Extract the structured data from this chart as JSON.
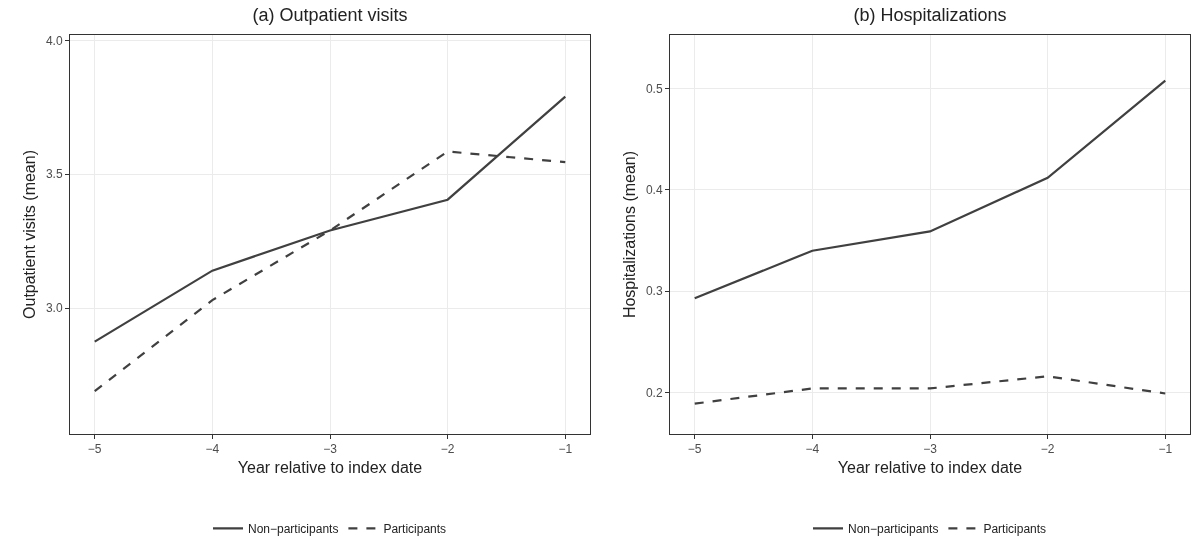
{
  "chart_data": [
    {
      "type": "line",
      "title": "(a) Outpatient visits",
      "xlabel": "Year relative to index date",
      "ylabel": "Outpatient visits (mean)",
      "x": [
        -5,
        -4,
        -3,
        -2,
        -1
      ],
      "xlim": [
        -5.21,
        -0.79
      ],
      "xticks": [
        {
          "value": -5,
          "label": "−5"
        },
        {
          "value": -4,
          "label": "−4"
        },
        {
          "value": -3,
          "label": "−3"
        },
        {
          "value": -2,
          "label": "−2"
        },
        {
          "value": -1,
          "label": "−1"
        }
      ],
      "ylim": [
        2.53,
        4.02
      ],
      "yticks": [
        {
          "value": 3,
          "label": "3.0"
        },
        {
          "value": 3.5,
          "label": "3.5"
        },
        {
          "value": 4,
          "label": "4.0"
        }
      ],
      "grid": true,
      "legend": "bottom",
      "marker": "none",
      "series": [
        {
          "name": "Non−participants",
          "color": "#404040",
          "line_style": "solid",
          "values": [
            2.875,
            3.14,
            3.29,
            3.405,
            3.79
          ]
        },
        {
          "name": "Participants",
          "color": "#404040",
          "line_style": "dashed",
          "values": [
            2.69,
            3.03,
            3.29,
            3.585,
            3.545
          ]
        }
      ]
    },
    {
      "type": "line",
      "title": "(b) Hospitalizations",
      "xlabel": "Year relative to index date",
      "ylabel": "Hospitalizations (mean)",
      "x": [
        -5,
        -4,
        -3,
        -2,
        -1
      ],
      "xlim": [
        -5.21,
        -0.79
      ],
      "xticks": [
        {
          "value": -5,
          "label": "−5"
        },
        {
          "value": -4,
          "label": "−4"
        },
        {
          "value": -3,
          "label": "−3"
        },
        {
          "value": -2,
          "label": "−2"
        },
        {
          "value": -1,
          "label": "−1"
        }
      ],
      "ylim": [
        0.159,
        0.553
      ],
      "yticks": [
        0.2,
        0.3,
        0.4,
        0.5
      ],
      "grid": true,
      "legend": "bottom",
      "marker": "none",
      "series": [
        {
          "name": "Non−participants",
          "color": "#404040",
          "line_style": "solid",
          "values": [
            0.293,
            0.34,
            0.359,
            0.412,
            0.508
          ]
        },
        {
          "name": "Participants",
          "color": "#404040",
          "line_style": "dashed",
          "values": [
            0.189,
            0.204,
            0.204,
            0.216,
            0.199
          ]
        }
      ]
    }
  ]
}
